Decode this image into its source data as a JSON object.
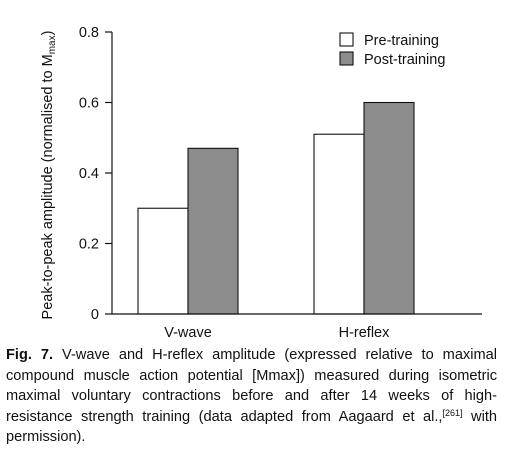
{
  "chart_data": {
    "type": "bar",
    "categories": [
      "V-wave",
      "H-reflex"
    ],
    "series": [
      {
        "name": "Pre-training",
        "values": [
          0.3,
          0.51
        ],
        "color": "#ffffff"
      },
      {
        "name": "Post-training",
        "values": [
          0.47,
          0.6
        ],
        "color": "#8c8c8c"
      }
    ],
    "xlabel": "",
    "ylabel_main": "Peak-to-peak amplitude (normalised to M",
    "ylabel_sub": "max",
    "ylabel_end": ")",
    "ylim": [
      0,
      0.8
    ],
    "yticks": [
      "0",
      "0.2",
      "0.4",
      "0.6",
      "0.8"
    ],
    "ytick_values": [
      0,
      0.2,
      0.4,
      0.6,
      0.8
    ],
    "grid": false,
    "legend_position": "top-right"
  },
  "caption": {
    "fig_label": "Fig. 7.",
    "text_1": " V-wave and H-reflex amplitude (expressed relative to maximal compound muscle action potential [Mmax]) measured during isometric maximal voluntary contractions before and after 14 weeks of high-resistance strength training (data adapted from Aagaard et al.,",
    "ref": "[261]",
    "text_2": " with permission)."
  }
}
